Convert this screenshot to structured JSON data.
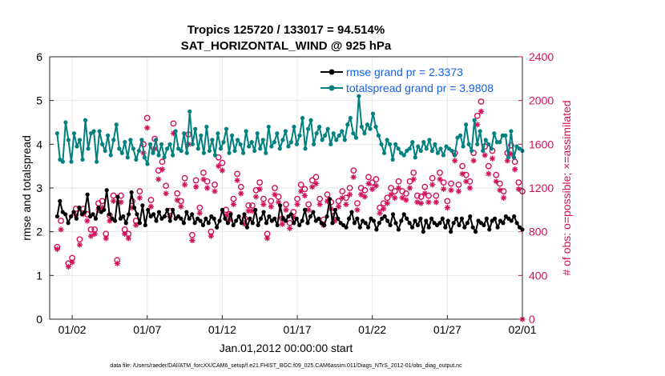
{
  "chart_data": {
    "type": "line",
    "title": "Tropics 125720 / 133017 = 94.514%",
    "subtitle": "SAT_HORIZONTAL_WIND @ 925 hPa",
    "xlabel": "Jan.01,2012 00:00:00 start",
    "ylabel": "rmse and totalspread",
    "ylabel_right": "# of obs: o=possible; ×=assimilated",
    "footnote": "data file: /Users/raeder/DAI/ATM_forcXX/CAM6_setup/f.e21.FHIST_BGC.f09_025.CAM6assim.011/Diags_NTrS_2012-01/obs_diag_output.nc",
    "xlim": [
      0.5,
      32.0
    ],
    "ylim": [
      0,
      6
    ],
    "ylim_right": [
      0,
      2400
    ],
    "x_ticks": [
      2,
      7,
      12,
      17,
      22,
      27,
      32
    ],
    "x_tick_labels": [
      "01/02",
      "01/07",
      "01/12",
      "01/17",
      "01/22",
      "01/27",
      "02/01"
    ],
    "y_ticks": [
      0,
      1,
      2,
      3,
      4,
      5,
      6
    ],
    "y_ticks_right": [
      0,
      400,
      800,
      1200,
      1600,
      2000,
      2400
    ],
    "grid": true,
    "legend_position": "top-right",
    "series": [
      {
        "name": "rmse grand pr = 2.3373",
        "color": "#000000",
        "marker": "filled-circle",
        "axis": "left",
        "values": [
          2.35,
          2.7,
          2.45,
          2.4,
          2.2,
          2.35,
          2.45,
          2.3,
          2.55,
          2.4,
          2.45,
          2.85,
          2.35,
          2.4,
          2.3,
          2.55,
          2.45,
          2.5,
          2.95,
          2.4,
          2.3,
          2.25,
          2.8,
          2.3,
          2.35,
          2.2,
          2.4,
          2.9,
          2.55,
          2.4,
          2.2,
          2.6,
          2.15,
          2.5,
          2.35,
          2.4,
          2.25,
          2.45,
          2.3,
          2.35,
          2.5,
          2.25,
          2.5,
          2.3,
          2.35,
          2.3,
          2.2,
          2.45,
          2.3,
          2.4,
          2.2,
          2.3,
          2.25,
          2.15,
          2.3,
          2.2,
          2.35,
          2.3,
          2.1,
          2.25,
          2.5,
          2.3,
          2.2,
          2.4,
          2.15,
          2.25,
          2.35,
          2.2,
          2.4,
          2.1,
          2.3,
          2.2,
          2.5,
          2.15,
          2.3,
          2.45,
          2.2,
          2.35,
          2.25,
          2.3,
          2.15,
          2.6,
          2.3,
          2.25,
          2.35,
          2.4,
          2.2,
          2.3,
          2.15,
          2.25,
          2.5,
          2.2,
          2.35,
          2.45,
          2.25,
          2.3,
          2.2,
          2.15,
          2.35,
          2.75,
          2.2,
          2.5,
          2.3,
          2.2,
          2.15,
          2.1,
          2.3,
          2.45,
          2.2,
          2.3,
          2.1,
          2.25,
          2.2,
          2.1,
          2.3,
          2.25,
          2.05,
          2.2,
          2.3,
          2.35,
          2.25,
          2.15,
          2.4,
          2.2,
          2.05,
          2.25,
          2.4,
          2.3,
          2.2,
          2.1,
          2.25,
          2.15,
          2.3,
          2.0,
          2.25,
          2.1,
          2.3,
          2.2,
          2.15,
          2.2,
          2.3,
          2.1,
          2.25,
          2.0,
          2.2,
          2.3,
          2.15,
          2.3,
          2.1,
          2.2,
          2.35,
          2.1,
          2.0,
          2.25,
          2.2,
          2.15,
          2.3,
          2.05,
          2.25,
          2.3,
          2.1,
          2.25,
          2.2,
          2.35,
          2.3,
          2.25,
          2.35,
          2.2,
          2.1,
          2.05
        ]
      },
      {
        "name": "totalspread grand pr = 3.9808",
        "color": "#00807f",
        "marker": "filled-circle",
        "axis": "left",
        "values": [
          4.25,
          3.65,
          3.6,
          4.5,
          4.1,
          3.6,
          4.25,
          3.95,
          4.1,
          3.65,
          4.55,
          3.9,
          4.25,
          4.3,
          3.6,
          4.3,
          4.0,
          3.85,
          4.2,
          3.75,
          4.1,
          4.45,
          3.9,
          3.8,
          4.05,
          3.7,
          4.1,
          3.9,
          3.65,
          3.85,
          4.1,
          3.7,
          3.55,
          4.0,
          3.8,
          4.1,
          3.75,
          4.0,
          3.7,
          3.9,
          4.0,
          3.75,
          4.3,
          3.9,
          3.85,
          4.25,
          3.8,
          4.75,
          4.0,
          4.35,
          3.9,
          4.2,
          3.8,
          4.4,
          3.85,
          4.1,
          3.75,
          4.25,
          3.9,
          4.05,
          4.35,
          3.8,
          4.2,
          3.85,
          4.1,
          4.0,
          3.8,
          4.3,
          3.95,
          4.05,
          3.85,
          4.25,
          3.9,
          4.1,
          3.8,
          4.4,
          3.95,
          4.05,
          4.25,
          3.9,
          4.1,
          4.3,
          3.95,
          4.05,
          4.4,
          4.0,
          4.2,
          4.6,
          3.9,
          4.35,
          4.55,
          4.0,
          4.25,
          4.4,
          4.1,
          4.2,
          4.35,
          4.0,
          4.25,
          4.1,
          4.2,
          4.3,
          4.1,
          4.45,
          4.6,
          4.25,
          4.15,
          5.1,
          4.4,
          4.25,
          4.45,
          4.35,
          4.7,
          4.4,
          4.2,
          4.0,
          3.8,
          4.1,
          4.0,
          3.65,
          4.0,
          3.9,
          3.8,
          3.75,
          3.85,
          3.9,
          4.05,
          3.7,
          3.95,
          3.85,
          4.05,
          3.9,
          4.1,
          3.85,
          4.0,
          3.8,
          3.9,
          3.75,
          3.95,
          3.9,
          3.85,
          3.75,
          4.15,
          4.2,
          3.95,
          4.45,
          4.0,
          3.85,
          4.55,
          4.0,
          4.3,
          3.85,
          4.1,
          4.0,
          3.9,
          4.25,
          4.05,
          4.05,
          4.2,
          4.2,
          3.7,
          4.3,
          3.7,
          3.95,
          3.9,
          3.85
        ]
      }
    ],
    "obs_possible": {
      "name": "# of obs possible",
      "marker": "o",
      "color": "#d1105a",
      "axis": "right",
      "x": [
        1.0,
        1.25,
        1.75,
        2.0,
        2.25,
        2.5,
        2.75,
        3.0,
        3.25,
        3.5,
        3.75,
        4.0,
        4.25,
        4.5,
        4.75,
        5.0,
        5.25,
        5.5,
        5.75,
        6.0,
        6.25,
        6.5,
        6.75,
        7.0,
        7.25,
        7.5,
        7.75,
        8.0,
        8.25,
        8.5,
        8.75,
        9.0,
        9.25,
        9.5,
        9.75,
        10.0,
        10.25,
        10.5,
        10.75,
        11.0,
        11.25,
        11.5,
        11.75,
        12.0,
        12.25,
        12.5,
        12.75,
        13.0,
        13.25,
        13.5,
        13.75,
        14.0,
        14.25,
        14.5,
        14.75,
        15.0,
        15.25,
        15.5,
        15.75,
        16.0,
        16.25,
        16.5,
        16.75,
        17.0,
        17.25,
        17.5,
        17.75,
        18.0,
        18.25,
        18.5,
        18.75,
        19.0,
        19.25,
        19.5,
        19.75,
        20.0,
        20.25,
        20.5,
        20.75,
        21.0,
        21.25,
        21.5,
        21.75,
        22.0,
        22.25,
        22.5,
        22.75,
        23.0,
        23.25,
        23.5,
        23.75,
        24.0,
        24.25,
        24.5,
        24.75,
        25.0,
        25.25,
        25.5,
        25.75,
        26.0,
        26.25,
        26.5,
        26.75,
        27.0,
        27.25,
        27.5,
        27.75,
        28.0,
        28.25,
        28.5,
        28.75,
        29.0,
        29.25,
        29.5,
        29.75,
        30.0,
        30.25,
        30.5,
        30.75,
        31.0,
        31.25,
        31.5,
        31.75,
        32.0
      ],
      "values": [
        660,
        900,
        510,
        560,
        1010,
        730,
        1010,
        960,
        820,
        820,
        1060,
        1080,
        780,
        950,
        1130,
        540,
        1130,
        820,
        780,
        1080,
        900,
        1170,
        1600,
        1840,
        1090,
        1650,
        1360,
        1440,
        1220,
        990,
        1790,
        1150,
        1080,
        1290,
        1690,
        770,
        1270,
        1020,
        1340,
        1260,
        800,
        1230,
        1480,
        1430,
        1000,
        960,
        1100,
        1330,
        1210,
        920,
        1040,
        1040,
        1180,
        1250,
        1100,
        780,
        1080,
        1200,
        1120,
        920,
        1050,
        880,
        980,
        1100,
        1230,
        1190,
        1050,
        1270,
        1300,
        1100,
        910,
        1140,
        1070,
        950,
        1080,
        1170,
        1110,
        1200,
        1360,
        1060,
        1200,
        1180,
        1300,
        1250,
        1280,
        1020,
        1060,
        1110,
        1200,
        1170,
        1260,
        1170,
        1150,
        1260,
        1340,
        1130,
        1120,
        1210,
        1130,
        1290,
        1130,
        1340,
        1250,
        1080,
        1240,
        1520,
        1230,
        1400,
        1320,
        1260,
        1520,
        1860,
        1990,
        1580,
        1400,
        1540,
        1320,
        1240,
        1170,
        1520,
        1590,
        1440,
        1250,
        1170
      ]
    },
    "obs_assimilated": {
      "name": "# of obs assimilated",
      "marker": "*",
      "color": "#d1105a",
      "axis": "right",
      "x": [
        1.0,
        1.25,
        1.75,
        2.0,
        2.25,
        2.5,
        2.75,
        3.0,
        3.25,
        3.5,
        3.75,
        4.0,
        4.25,
        4.5,
        4.75,
        5.0,
        5.25,
        5.5,
        5.75,
        6.0,
        6.25,
        6.5,
        6.75,
        7.0,
        7.25,
        7.5,
        7.75,
        8.0,
        8.25,
        8.5,
        8.75,
        9.0,
        9.25,
        9.5,
        9.75,
        10.0,
        10.25,
        10.5,
        10.75,
        11.0,
        11.25,
        11.5,
        11.75,
        12.0,
        12.25,
        12.5,
        12.75,
        13.0,
        13.25,
        13.5,
        13.75,
        14.0,
        14.25,
        14.5,
        14.75,
        15.0,
        15.25,
        15.5,
        15.75,
        16.0,
        16.25,
        16.5,
        16.75,
        17.0,
        17.25,
        17.5,
        17.75,
        18.0,
        18.25,
        18.5,
        18.75,
        19.0,
        19.25,
        19.5,
        19.75,
        20.0,
        20.25,
        20.5,
        20.75,
        21.0,
        21.25,
        21.5,
        21.75,
        22.0,
        22.25,
        22.5,
        22.75,
        23.0,
        23.25,
        23.5,
        23.75,
        24.0,
        24.25,
        24.5,
        24.75,
        25.0,
        25.25,
        25.5,
        25.75,
        26.0,
        26.25,
        26.5,
        26.75,
        27.0,
        27.25,
        27.5,
        27.75,
        28.0,
        28.25,
        28.5,
        28.75,
        29.0,
        29.25,
        29.5,
        29.75,
        30.0,
        30.25,
        30.5,
        30.75,
        31.0,
        31.25,
        31.5,
        31.75,
        32.0
      ],
      "values": [
        640,
        820,
        480,
        520,
        950,
        680,
        960,
        900,
        760,
        780,
        1000,
        1020,
        740,
        900,
        1080,
        510,
        1070,
        780,
        740,
        1020,
        860,
        1110,
        1520,
        1750,
        1030,
        1560,
        1280,
        1370,
        1150,
        940,
        1700,
        1090,
        1030,
        1230,
        1600,
        720,
        1210,
        970,
        1280,
        1200,
        760,
        1170,
        1400,
        1360,
        950,
        910,
        1050,
        1270,
        1150,
        870,
        990,
        990,
        1120,
        1190,
        1050,
        740,
        1030,
        1140,
        1070,
        870,
        1000,
        830,
        930,
        1050,
        1170,
        1130,
        1000,
        1210,
        1240,
        1050,
        860,
        1080,
        1010,
        900,
        1030,
        1110,
        1050,
        1140,
        1300,
        1000,
        1140,
        1120,
        1240,
        1190,
        1220,
        970,
        1010,
        1060,
        1140,
        1110,
        1200,
        1110,
        1090,
        1200,
        1280,
        1070,
        1060,
        1150,
        1070,
        1230,
        1070,
        1280,
        1190,
        1020,
        1180,
        1450,
        1170,
        1330,
        1260,
        1200,
        1450,
        1780,
        1900,
        1500,
        1330,
        1470,
        1260,
        1180,
        1110,
        1450,
        1510,
        1370,
        1190,
        0
      ]
    }
  }
}
